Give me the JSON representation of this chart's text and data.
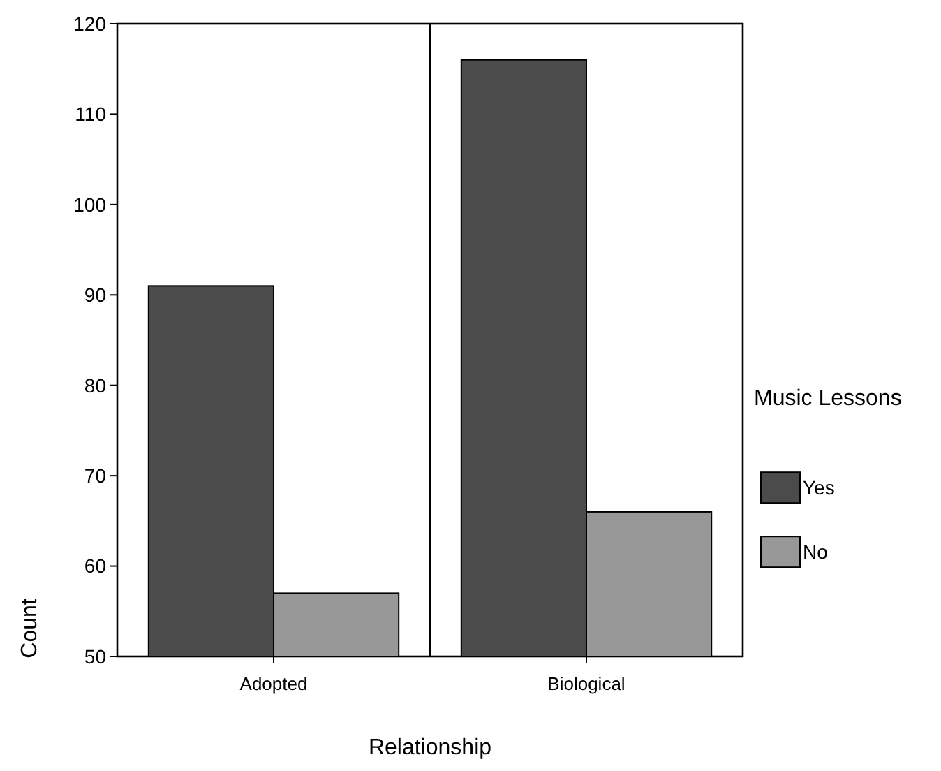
{
  "chart_data": {
    "type": "bar",
    "xlabel": "Relationship",
    "ylabel": "Count",
    "legend_title": "Music Lessons",
    "categories": [
      "Adopted",
      "Biological"
    ],
    "series": [
      {
        "name": "Yes",
        "color": "#4b4b4b",
        "values": [
          91,
          116
        ]
      },
      {
        "name": "No",
        "color": "#989898",
        "values": [
          57,
          66
        ]
      }
    ],
    "ylim": [
      50,
      120
    ],
    "yticks": [
      50,
      60,
      70,
      80,
      90,
      100,
      110,
      120
    ],
    "grid": false,
    "legend": "right"
  }
}
